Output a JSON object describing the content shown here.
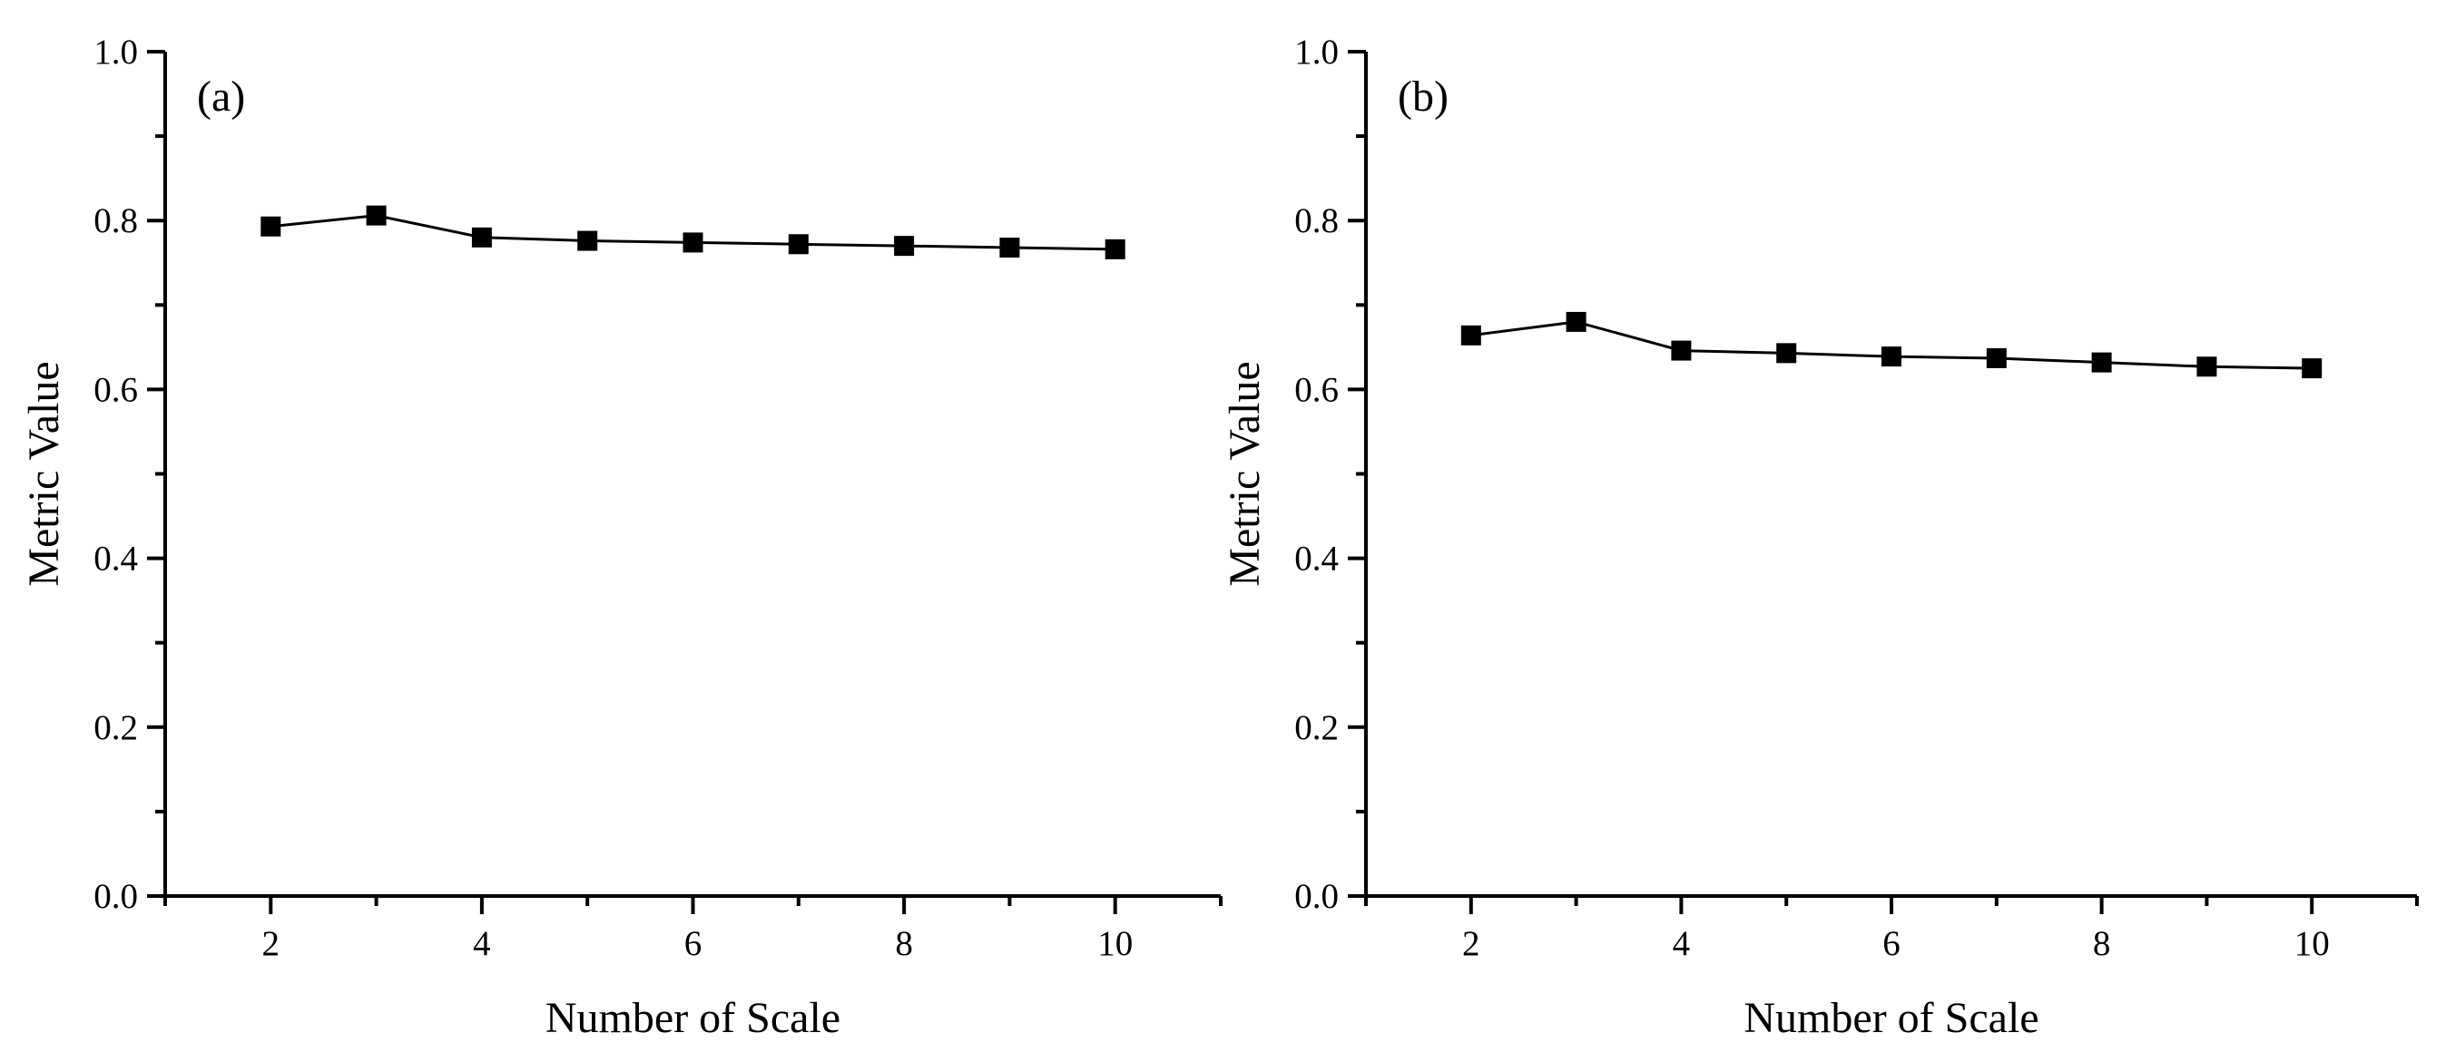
{
  "chart_data": [
    {
      "type": "line",
      "panel_label": "(a)",
      "xlabel": "Number of Scale",
      "ylabel": "Metric Value",
      "x": [
        2,
        3,
        4,
        5,
        6,
        7,
        8,
        9,
        10
      ],
      "series": [
        {
          "name": "Metric Value",
          "values": [
            0.793,
            0.806,
            0.78,
            0.776,
            0.774,
            0.772,
            0.77,
            0.768,
            0.766
          ],
          "marker": "square",
          "color": "#000000"
        }
      ],
      "xlim": [
        1,
        11
      ],
      "ylim": [
        0.0,
        1.0
      ],
      "xticks": [
        2,
        4,
        6,
        8,
        10
      ],
      "xtick_labels": [
        "2",
        "4",
        "6",
        "8",
        "10"
      ],
      "yticks": [
        0.0,
        0.2,
        0.4,
        0.6,
        0.8,
        1.0
      ],
      "ytick_labels": [
        "0.0",
        "0.2",
        "0.4",
        "0.6",
        "0.8",
        "1.0"
      ],
      "grid": false
    },
    {
      "type": "line",
      "panel_label": "(b)",
      "xlabel": "Number of Scale",
      "ylabel": "Metric Value",
      "x": [
        2,
        3,
        4,
        5,
        6,
        7,
        8,
        9,
        10
      ],
      "series": [
        {
          "name": "Metric Value",
          "values": [
            0.664,
            0.68,
            0.646,
            0.643,
            0.639,
            0.637,
            0.632,
            0.627,
            0.625
          ],
          "marker": "square",
          "color": "#000000"
        }
      ],
      "xlim": [
        1,
        11
      ],
      "ylim": [
        0.0,
        1.0
      ],
      "xticks": [
        2,
        4,
        6,
        8,
        10
      ],
      "xtick_labels": [
        "2",
        "4",
        "6",
        "8",
        "10"
      ],
      "yticks": [
        0.0,
        0.2,
        0.4,
        0.6,
        0.8,
        1.0
      ],
      "ytick_labels": [
        "0.0",
        "0.2",
        "0.4",
        "0.6",
        "0.8",
        "1.0"
      ],
      "grid": false
    }
  ]
}
